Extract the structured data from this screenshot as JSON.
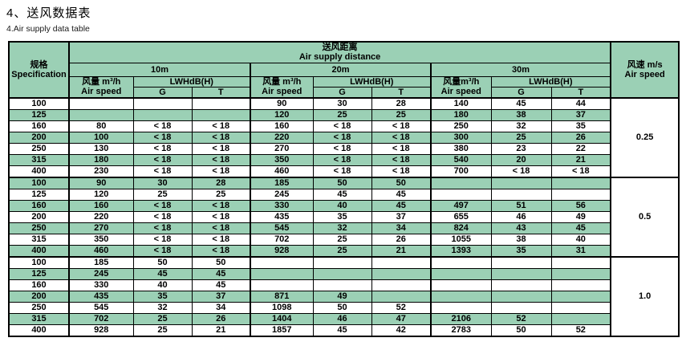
{
  "page": {
    "title_zh": "4、送风数据表",
    "title_en": "4.Air supply data table"
  },
  "colors": {
    "header_green": "#9bd0b5",
    "row_green": "#9bd0b5",
    "border": "#000000"
  },
  "table": {
    "spec_header": {
      "zh": "规格",
      "en": "Specification"
    },
    "distance_header": {
      "zh": "送风距离",
      "en": "Air supply distance"
    },
    "air_speed_header": {
      "zh": "风速 m/s",
      "en": "Air speed"
    },
    "groups": [
      {
        "distance": "10m",
        "flow_zh": "风量 m³/h",
        "flow_en": "Air speed",
        "lwh": "LWHdB(H)",
        "g": "G",
        "t": "T"
      },
      {
        "distance": "20m",
        "flow_zh": "风量 m³/h",
        "flow_en": "Air speed",
        "lwh": "LWHdB(H)",
        "g": "G",
        "t": "T"
      },
      {
        "distance": "30m",
        "flow_zh": "风量m³/h",
        "flow_en": "Air speed",
        "lwh": "LWHdB(H)",
        "g": "G",
        "t": "T"
      }
    ],
    "blocks": [
      {
        "air_speed": "0.25",
        "rows": [
          {
            "spec": "100",
            "cells": [
              "",
              "",
              "",
              "90",
              "30",
              "28",
              "140",
              "45",
              "44"
            ]
          },
          {
            "spec": "125",
            "cells": [
              "",
              "",
              "",
              "120",
              "25",
              "25",
              "180",
              "38",
              "37"
            ]
          },
          {
            "spec": "160",
            "cells": [
              "80",
              "< 18",
              "< 18",
              "160",
              "< 18",
              "< 18",
              "250",
              "32",
              "35"
            ]
          },
          {
            "spec": "200",
            "cells": [
              "100",
              "< 18",
              "< 18",
              "220",
              "< 18",
              "< 18",
              "300",
              "25",
              "26"
            ]
          },
          {
            "spec": "250",
            "cells": [
              "130",
              "< 18",
              "< 18",
              "270",
              "< 18",
              "< 18",
              "380",
              "23",
              "22"
            ]
          },
          {
            "spec": "315",
            "cells": [
              "180",
              "< 18",
              "< 18",
              "350",
              "< 18",
              "< 18",
              "540",
              "20",
              "21"
            ]
          },
          {
            "spec": "400",
            "cells": [
              "230",
              "< 18",
              "< 18",
              "460",
              "< 18",
              "< 18",
              "700",
              "< 18",
              "< 18"
            ]
          }
        ]
      },
      {
        "air_speed": "0.5",
        "rows": [
          {
            "spec": "100",
            "cells": [
              "90",
              "30",
              "28",
              "185",
              "50",
              "50",
              "",
              "",
              ""
            ]
          },
          {
            "spec": "125",
            "cells": [
              "120",
              "25",
              "25",
              "245",
              "45",
              "45",
              "",
              "",
              ""
            ]
          },
          {
            "spec": "160",
            "cells": [
              "160",
              "< 18",
              "< 18",
              "330",
              "40",
              "45",
              "497",
              "51",
              "56"
            ]
          },
          {
            "spec": "200",
            "cells": [
              "220",
              "< 18",
              "< 18",
              "435",
              "35",
              "37",
              "655",
              "46",
              "49"
            ]
          },
          {
            "spec": "250",
            "cells": [
              "270",
              "< 18",
              "< 18",
              "545",
              "32",
              "34",
              "824",
              "43",
              "45"
            ]
          },
          {
            "spec": "315",
            "cells": [
              "350",
              "< 18",
              "< 18",
              "702",
              "25",
              "26",
              "1055",
              "38",
              "40"
            ]
          },
          {
            "spec": "400",
            "cells": [
              "460",
              "< 18",
              "< 18",
              "928",
              "25",
              "21",
              "1393",
              "35",
              "31"
            ]
          }
        ]
      },
      {
        "air_speed": "1.0",
        "rows": [
          {
            "spec": "100",
            "cells": [
              "185",
              "50",
              "50",
              "",
              "",
              "",
              "",
              "",
              ""
            ]
          },
          {
            "spec": "125",
            "cells": [
              "245",
              "45",
              "45",
              "",
              "",
              "",
              "",
              "",
              ""
            ]
          },
          {
            "spec": "160",
            "cells": [
              "330",
              "40",
              "45",
              "",
              "",
              "",
              "",
              "",
              ""
            ]
          },
          {
            "spec": "200",
            "cells": [
              "435",
              "35",
              "37",
              "871",
              "49",
              "",
              "",
              "",
              ""
            ]
          },
          {
            "spec": "250",
            "cells": [
              "545",
              "32",
              "34",
              "1098",
              "50",
              "52",
              "",
              "",
              ""
            ]
          },
          {
            "spec": "315",
            "cells": [
              "702",
              "25",
              "26",
              "1404",
              "46",
              "47",
              "2106",
              "52",
              ""
            ]
          },
          {
            "spec": "400",
            "cells": [
              "928",
              "25",
              "21",
              "1857",
              "45",
              "42",
              "2783",
              "50",
              "52"
            ]
          }
        ]
      }
    ]
  }
}
